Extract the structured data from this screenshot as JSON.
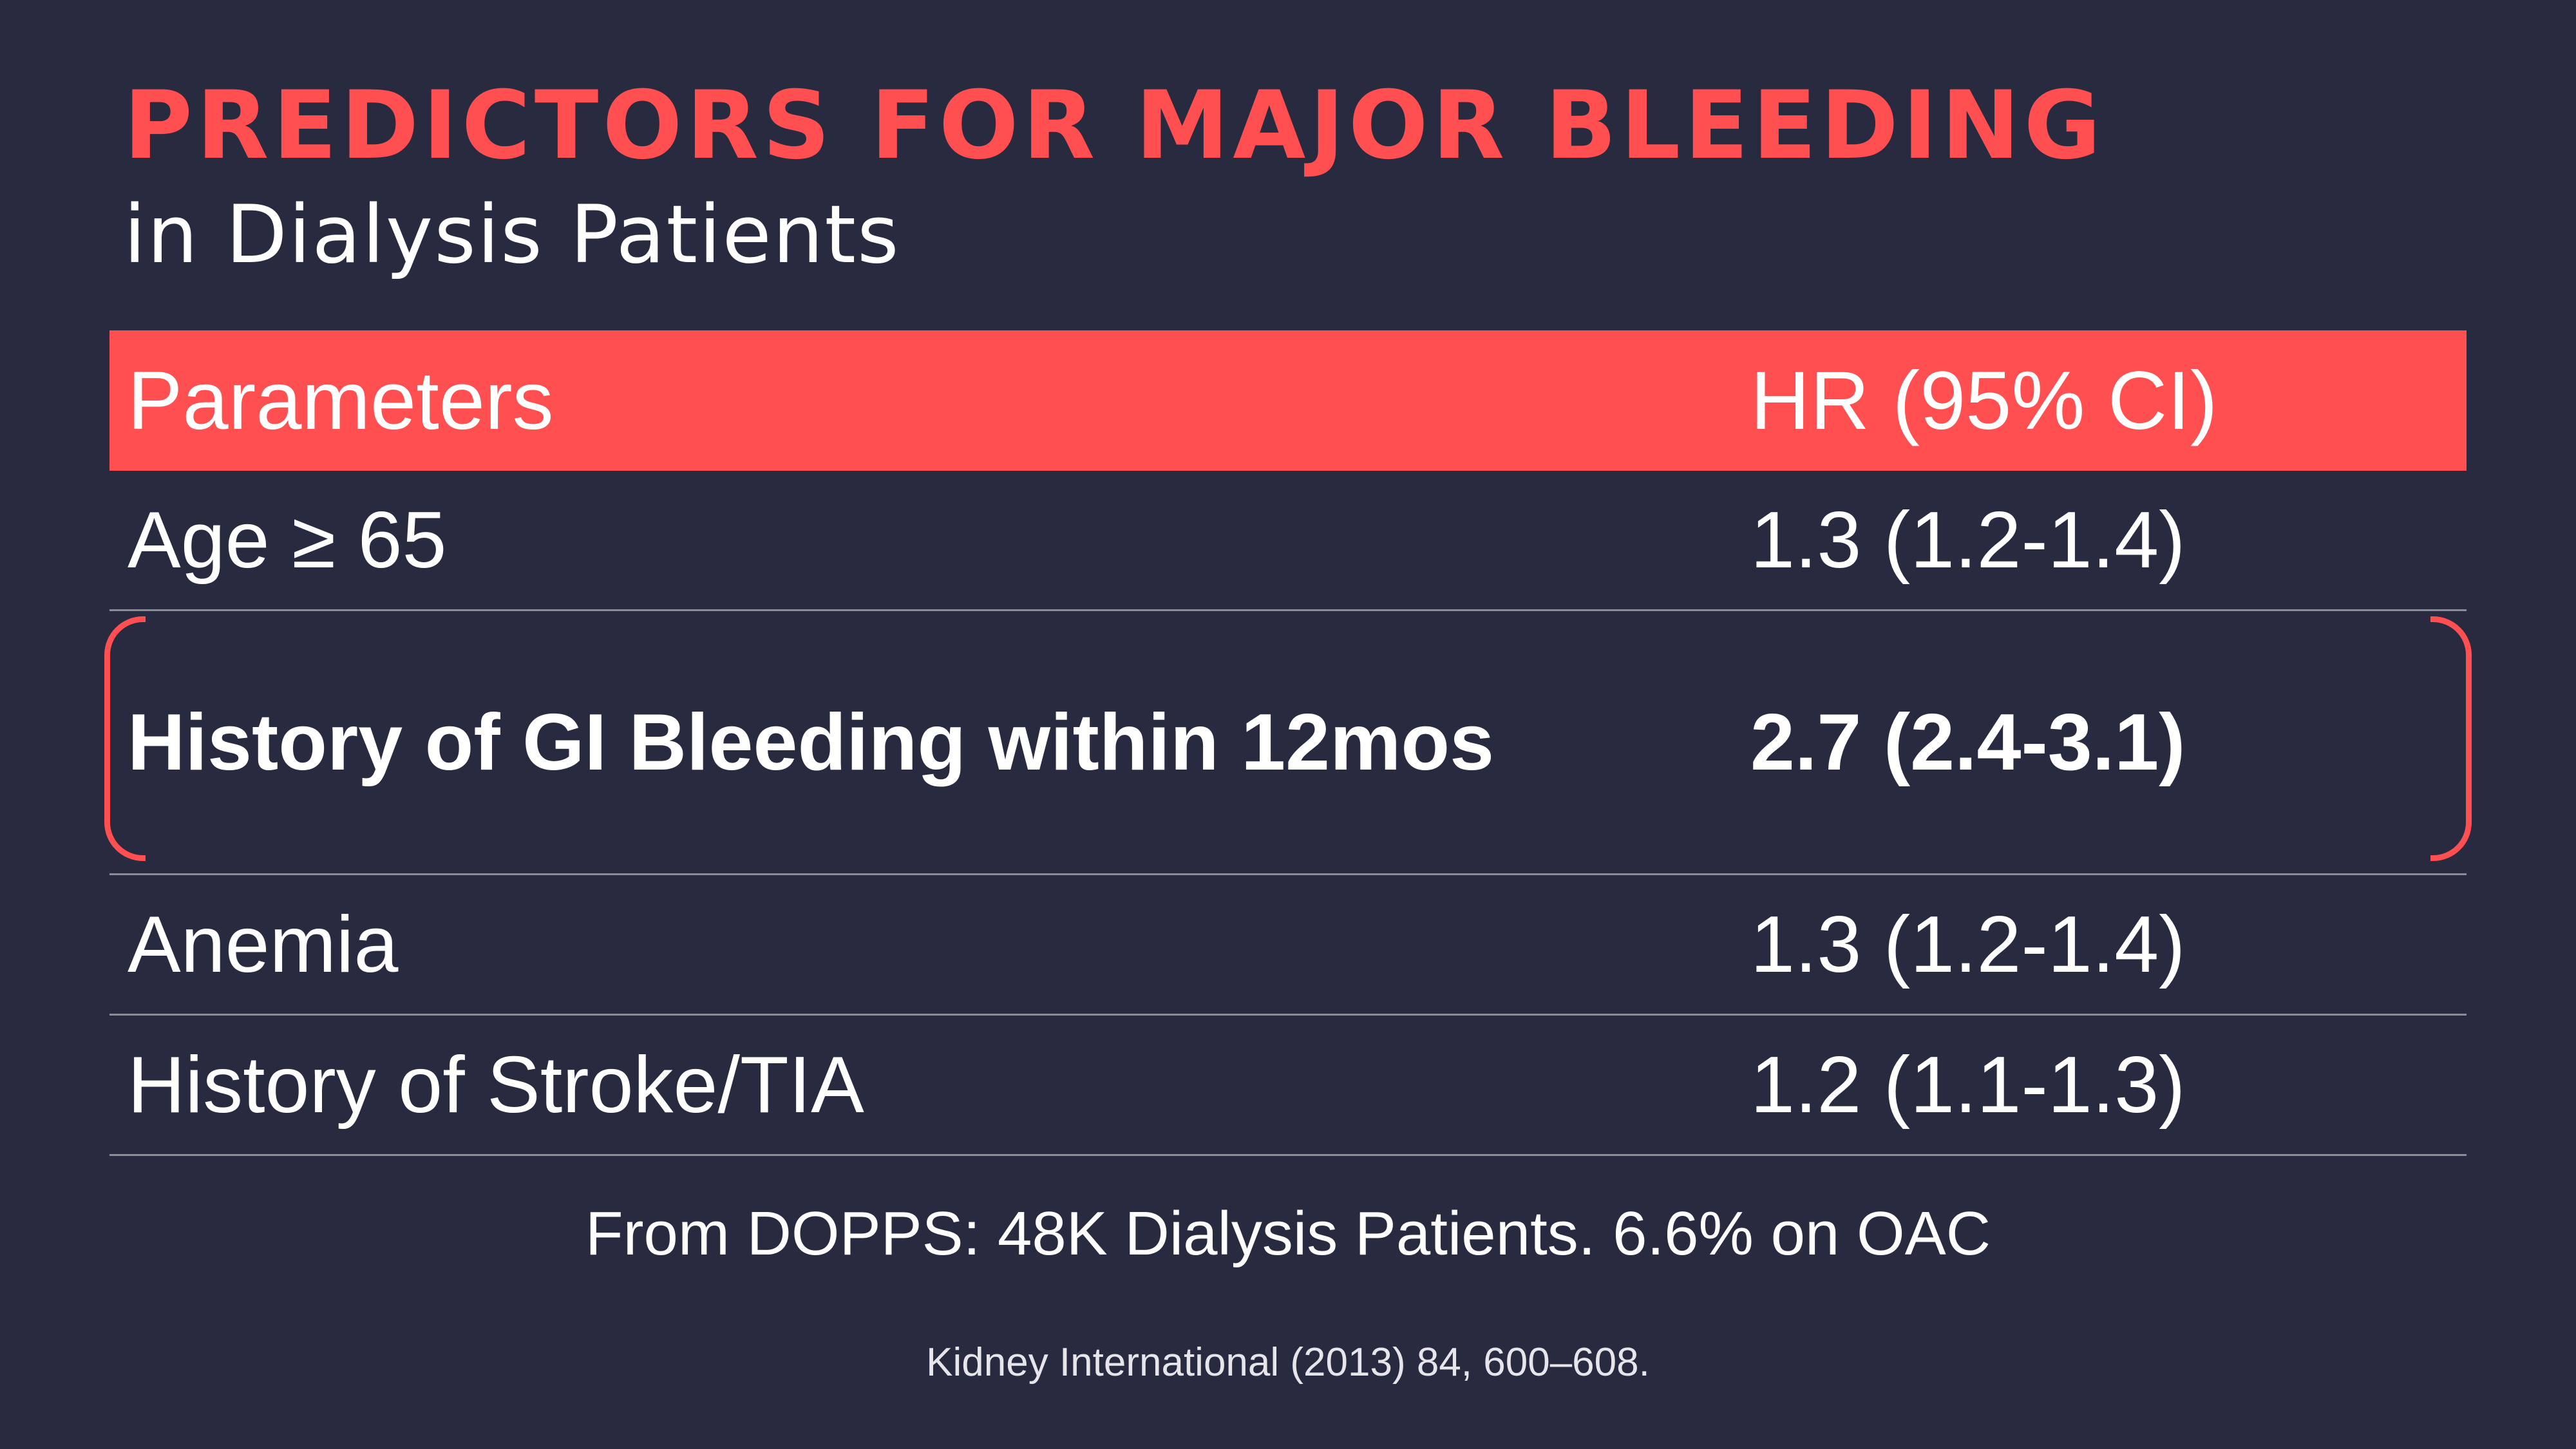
{
  "title": "PREDICTORS FOR MAJOR BLEEDING",
  "subtitle": "in Dialysis Patients",
  "table": {
    "header": {
      "parameter": "Parameters",
      "hr": "HR (95% CI)"
    },
    "rows": [
      {
        "parameter": "Age ≥ 65",
        "hr": "1.3 (1.2-1.4)"
      },
      {
        "parameter": "History of GI Bleeding within 12mos",
        "hr": "2.7 (2.4-3.1)"
      },
      {
        "parameter": "Anemia",
        "hr": "1.3 (1.2-1.4)"
      },
      {
        "parameter": "History of Stroke/TIA",
        "hr": "1.2 (1.1-1.3)"
      }
    ],
    "highlighted_row": 1
  },
  "footnote": "From DOPPS: 48K Dialysis Patients. 6.6% on OAC",
  "citation": "Kidney International (2013) 84, 600–608.",
  "colors": {
    "background": "#282a3f",
    "accent": "#ff4f50",
    "text": "#ffffff",
    "divider": "#8a8c99"
  }
}
